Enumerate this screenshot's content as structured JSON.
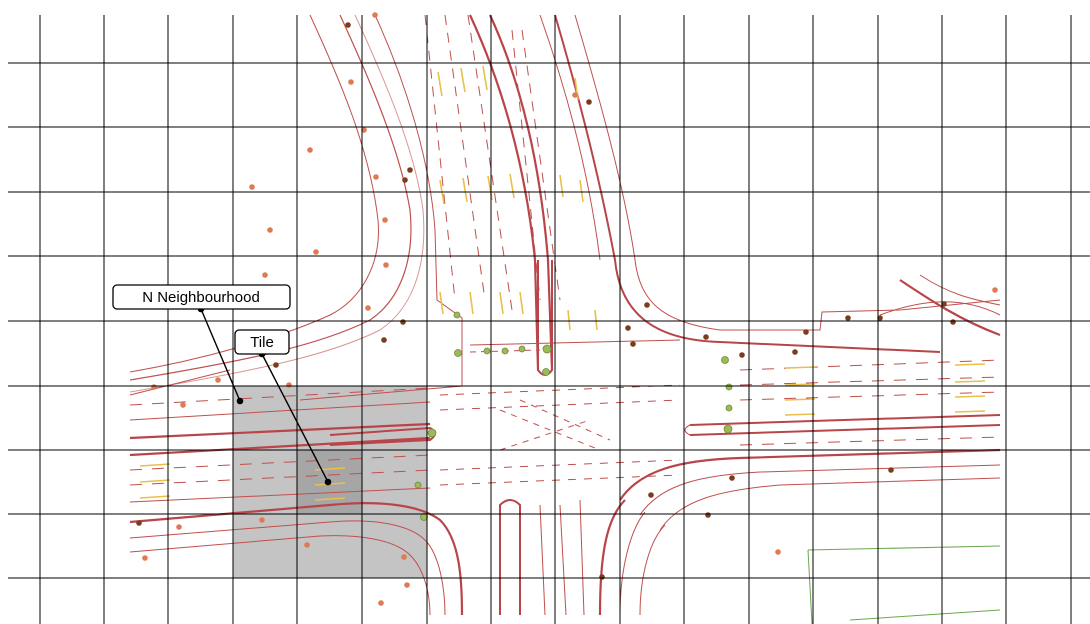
{
  "labels": {
    "neighbourhood": "N Neighbourhood",
    "tile": "Tile"
  },
  "colors": {
    "grid": "#000000",
    "road_line": "#c0504d",
    "road_line_light": "#d99694",
    "road_thick": "#b8454a",
    "arrow": "#e8c04a",
    "tree_light": "#e07a52",
    "tree_dark": "#7a3b1e",
    "sign": "#9bbb59",
    "neighbourhood_fill": "#c8c8c8",
    "tile_fill": "#a8a8a8",
    "parcel": "#6aa84f"
  },
  "icons": {
    "tree": "tree-dot-icon",
    "signal": "traffic-signal-icon",
    "arrow": "lane-arrow-icon"
  }
}
